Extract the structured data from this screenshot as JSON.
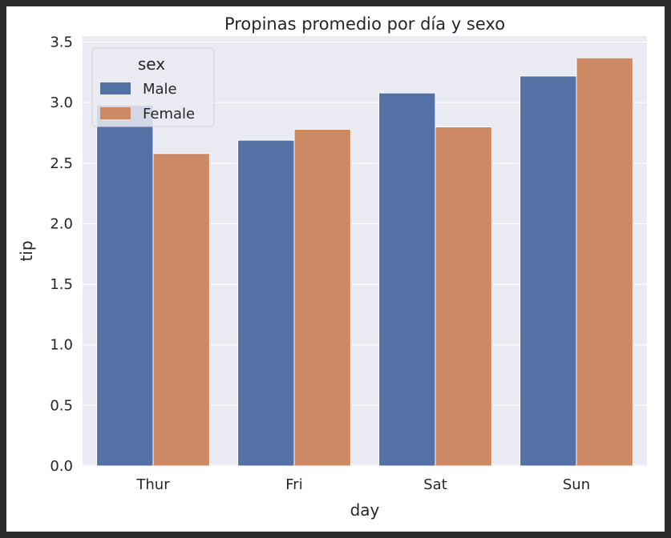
{
  "chart_data": {
    "type": "bar",
    "title": "Propinas promedio por día y sexo",
    "xlabel": "day",
    "ylabel": "tip",
    "categories": [
      "Thur",
      "Fri",
      "Sat",
      "Sun"
    ],
    "series": [
      {
        "name": "Male",
        "values": [
          2.98,
          2.69,
          3.08,
          3.22
        ],
        "color": "#5471a6"
      },
      {
        "name": "Female",
        "values": [
          2.58,
          2.78,
          2.8,
          3.37
        ],
        "color": "#cc8963"
      }
    ],
    "ylim": [
      0,
      3.55
    ],
    "yticks": [
      "0.0",
      "0.5",
      "1.0",
      "1.5",
      "2.0",
      "2.5",
      "3.0",
      "3.5"
    ],
    "grid": true,
    "background_color": "#eaeaf2",
    "legend": {
      "title": "sex",
      "placement": "top-left"
    }
  }
}
